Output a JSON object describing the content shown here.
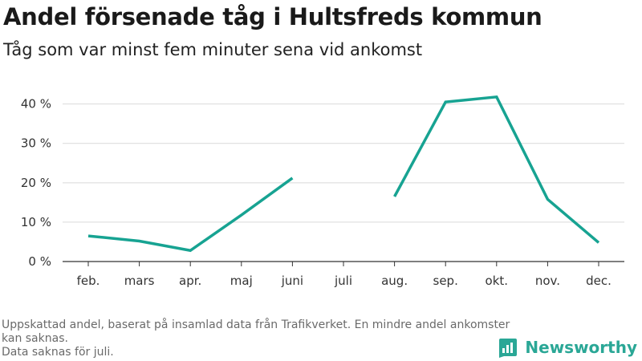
{
  "header": {
    "title": "Andel försenade tåg i Hultsfreds kommun",
    "subtitle": "Tåg som var minst fem minuter sena vid ankomst"
  },
  "footnote": {
    "line1": "Uppskattad andel, baserat på insamlad data från Trafikverket. En mindre andel ankomster kan saknas.",
    "line2": "Data saknas för juli."
  },
  "brand": {
    "name": "Newsworthy",
    "icon": "newsworthy-logo-icon",
    "color": "#2aa796"
  },
  "chart_data": {
    "type": "line",
    "title": "Andel försenade tåg i Hultsfreds kommun",
    "subtitle": "Tåg som var minst fem minuter sena vid ankomst",
    "categories": [
      "feb.",
      "mars",
      "apr.",
      "maj",
      "juni",
      "juli",
      "aug.",
      "sep.",
      "okt.",
      "nov.",
      "dec."
    ],
    "series": [
      {
        "values": [
          6.5,
          5.2,
          2.8,
          11.8,
          21.2,
          null,
          16.5,
          40.5,
          41.8,
          15.8,
          4.8
        ],
        "color": "#17a392"
      }
    ],
    "yticks": [
      0,
      10,
      20,
      30,
      40
    ],
    "ytick_labels": [
      "0 %",
      "10 %",
      "20 %",
      "30 %",
      "40 %"
    ],
    "ylim": [
      0,
      44
    ],
    "xlabel": "",
    "ylabel": "",
    "grid": true,
    "legend": false
  }
}
